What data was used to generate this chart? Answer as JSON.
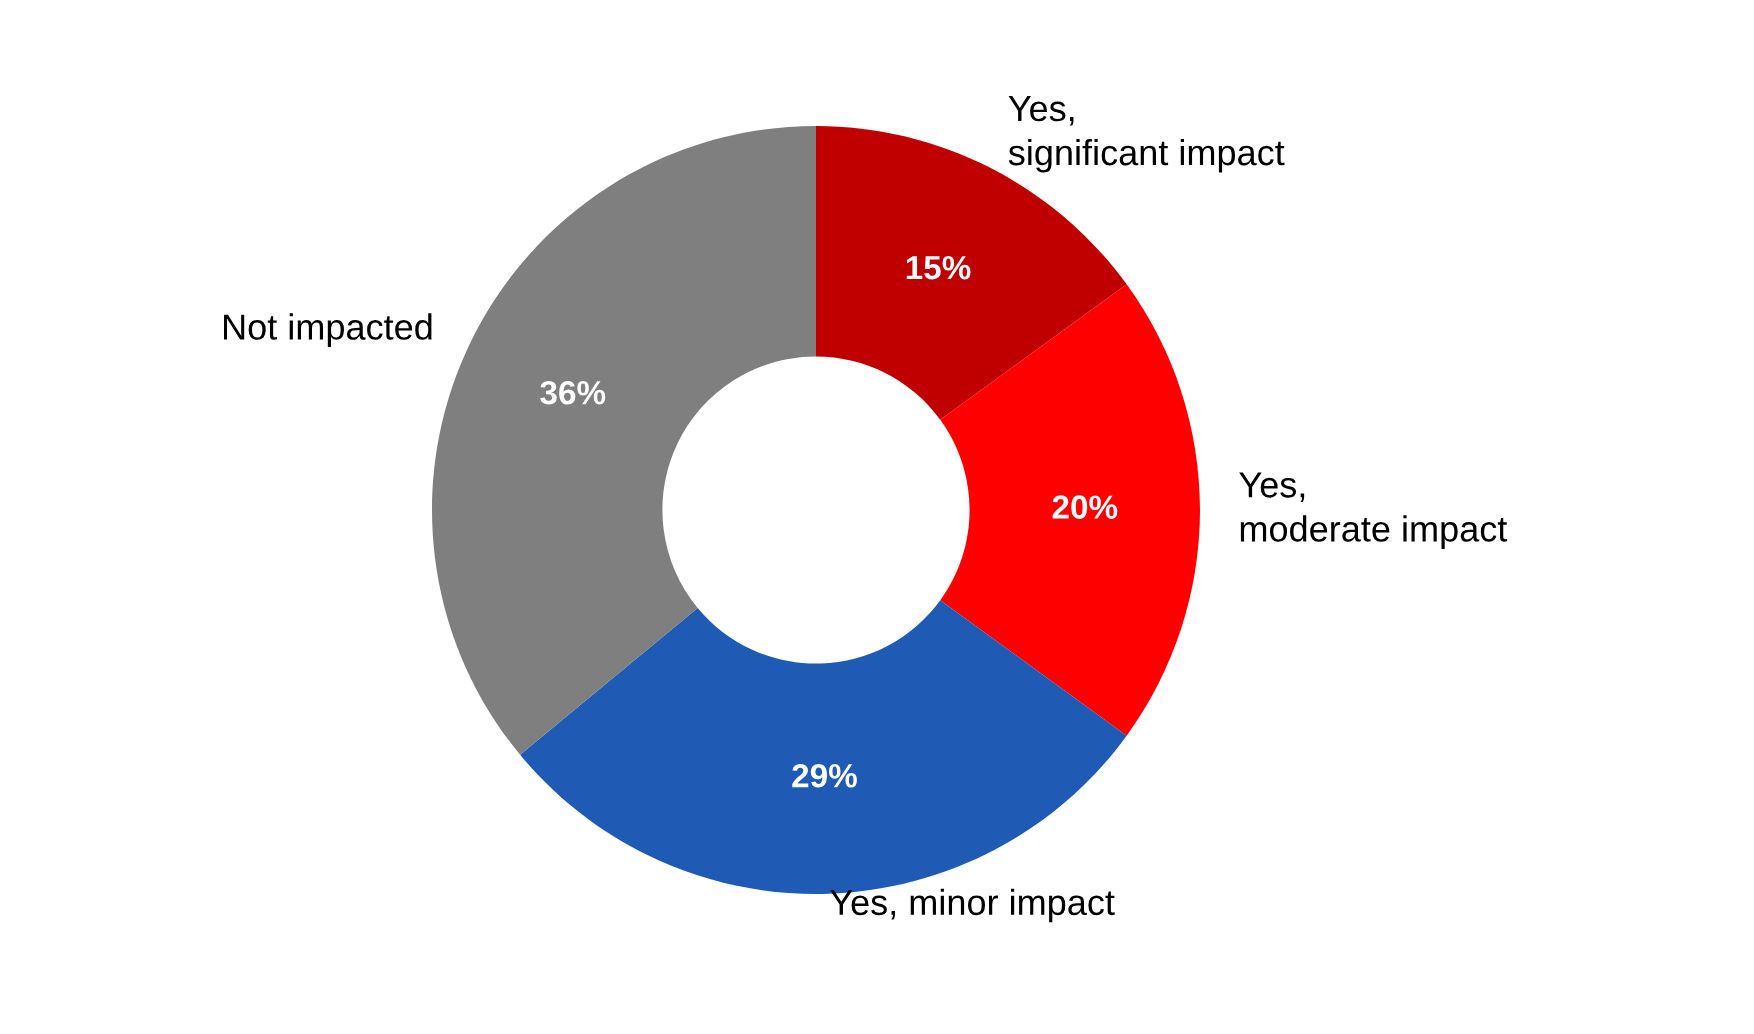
{
  "chart_data": {
    "type": "donut",
    "categories": [
      "Yes,\nsignificant impact",
      "Yes,\nmoderate impact",
      "Yes, minor impact",
      "Not impacted"
    ],
    "values": [
      15,
      20,
      29,
      36
    ],
    "value_labels": [
      "15%",
      "20%",
      "29%",
      "36%"
    ],
    "colors": [
      "#c00000",
      "#ff0000",
      "#1f5bb5",
      "#7f7f7f"
    ],
    "legend": false
  }
}
